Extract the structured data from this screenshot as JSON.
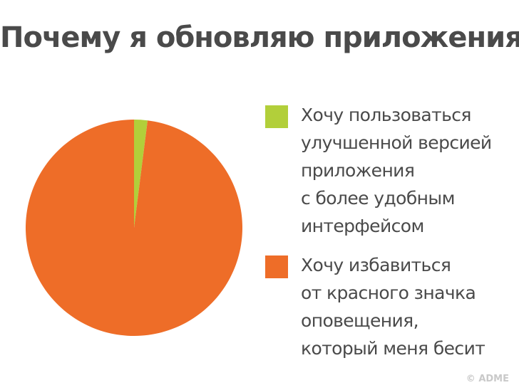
{
  "chart_data": {
    "type": "pie",
    "title": "Почему я обновляю приложения",
    "slices": [
      {
        "label": "Хочу пользоваться\nулучшенной версией\nприложения\nс более удобным\nинтерфейсом",
        "value": 2,
        "color": "#b2cf3a"
      },
      {
        "label": "Хочу избавиться\nот красного значка\nоповещения,\nкоторый меня бесит",
        "value": 98,
        "color": "#ee6d28"
      }
    ],
    "legend_position": "right"
  },
  "watermark": "© ADME"
}
